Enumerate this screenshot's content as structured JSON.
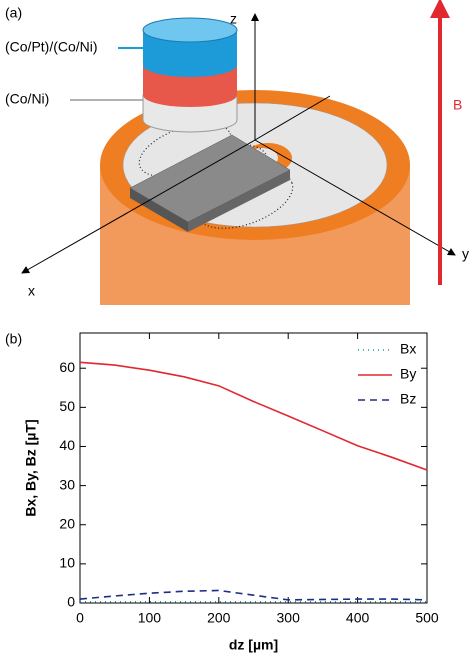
{
  "diagram": {
    "panel_label": "(a)",
    "top_layer": "(Co/Pt)/(Co/Ni)",
    "bottom_layer": "(Co/Ni)",
    "z_axis": "z",
    "x_axis": "x",
    "y_axis": "y",
    "field": "B"
  },
  "panel_b_label": "(b)",
  "chart_data": {
    "type": "line",
    "x": [
      0,
      50,
      100,
      150,
      200,
      250,
      300,
      350,
      400,
      450,
      500
    ],
    "series": [
      {
        "name": "Bx",
        "color": "#1a9aa0",
        "dash": "1 4",
        "values": [
          0.3,
          0.3,
          0.3,
          0.3,
          0.3,
          0.3,
          0.3,
          0.3,
          0.3,
          0.3,
          0.3
        ]
      },
      {
        "name": "By",
        "color": "#e0282e",
        "dash": "",
        "values": [
          61.5,
          60.8,
          59.5,
          57.8,
          55.5,
          51.5,
          47.8,
          44,
          40.2,
          37.2,
          34
        ]
      },
      {
        "name": "Bz",
        "color": "#1f2d86",
        "dash": "7 5",
        "values": [
          1,
          1.8,
          2.5,
          3,
          3.2,
          2,
          0.8,
          0.9,
          1,
          1,
          0.8
        ]
      }
    ],
    "xlabel": "dz [µm]",
    "ylabel": "Bx, By, Bz [µT]",
    "xlim": [
      0,
      500
    ],
    "ylim": [
      0,
      69
    ],
    "xticks": [
      0,
      100,
      200,
      300,
      400,
      500
    ],
    "yticks": [
      0,
      10,
      20,
      30,
      40,
      50,
      60
    ],
    "legend": "upper right"
  }
}
